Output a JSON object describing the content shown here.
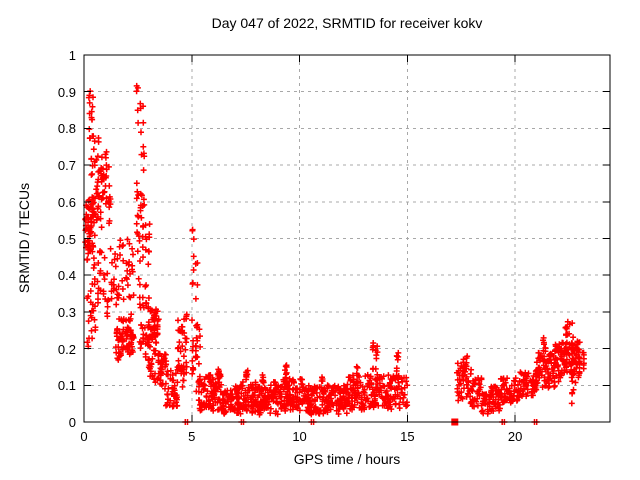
{
  "title": "Day 047 of 2022, SRMTID for receiver kokv",
  "axes": {
    "xlabel": "GPS time / hours",
    "ylabel": "SRMTID / TECUs"
  },
  "chart_data": {
    "type": "scatter",
    "title": "Day 047 of 2022, SRMTID for receiver kokv",
    "xlabel": "GPS time / hours",
    "ylabel": "SRMTID / TECUs",
    "xlim": [
      0,
      24.4
    ],
    "ylim": [
      0,
      1
    ],
    "grid": true,
    "legend": "none",
    "marker": "plus",
    "marker_color": "#ff0000",
    "grid_color": "#a8a8a8",
    "axis_color": "#000000",
    "x_ticks": {
      "values": [
        0,
        5,
        10,
        15,
        20
      ],
      "labels": [
        "0",
        "5",
        "10",
        "15",
        "20"
      ]
    },
    "y_ticks": {
      "values": [
        0,
        0.1,
        0.2,
        0.3,
        0.4,
        0.5,
        0.6,
        0.7,
        0.8,
        0.9,
        1
      ],
      "labels": [
        "0",
        "0.1",
        "0.2",
        "0.3",
        "0.4",
        "0.5",
        "0.6",
        "0.7",
        "0.8",
        "0.9",
        "1"
      ]
    },
    "band_format": [
      "x_start_hour",
      "x_end_hour",
      "srmtid_min",
      "srmtid_max",
      "point_count",
      "column_clusters"
    ],
    "point_bands": [
      [
        0.05,
        0.45,
        0.44,
        0.64,
        55,
        5
      ],
      [
        0.2,
        0.5,
        0.77,
        0.93,
        16,
        2
      ],
      [
        0.3,
        0.75,
        0.5,
        0.78,
        40,
        4
      ],
      [
        0.75,
        1.25,
        0.52,
        0.75,
        40,
        4
      ],
      [
        0.1,
        1.35,
        0.28,
        0.5,
        50,
        8
      ],
      [
        0.15,
        0.55,
        0.2,
        0.33,
        12,
        3
      ],
      [
        1.3,
        2.35,
        0.3,
        0.52,
        45,
        7
      ],
      [
        1.45,
        2.35,
        0.16,
        0.3,
        80,
        8
      ],
      [
        2.45,
        2.8,
        0.55,
        0.94,
        26,
        3
      ],
      [
        2.4,
        3.05,
        0.33,
        0.58,
        30,
        5
      ],
      [
        2.55,
        3.05,
        0.15,
        0.35,
        30,
        4
      ],
      [
        2.95,
        3.5,
        0.2,
        0.32,
        50,
        5
      ],
      [
        2.95,
        3.6,
        0.1,
        0.2,
        30,
        5
      ],
      [
        3.5,
        3.8,
        0.08,
        0.2,
        25,
        3
      ],
      [
        3.8,
        4.35,
        0.04,
        0.14,
        40,
        0
      ],
      [
        4.35,
        4.75,
        0.08,
        0.3,
        45,
        4
      ],
      [
        5.0,
        5.35,
        0.12,
        0.53,
        18,
        2
      ],
      [
        5.0,
        5.4,
        0.07,
        0.3,
        22,
        3
      ],
      [
        5.3,
        6.4,
        0.03,
        0.13,
        95,
        0
      ],
      [
        6.1,
        6.35,
        0.1,
        0.16,
        8,
        1
      ],
      [
        6.4,
        7.25,
        0.02,
        0.1,
        70,
        0
      ],
      [
        7.25,
        9.0,
        0.02,
        0.11,
        150,
        0
      ],
      [
        7.5,
        7.7,
        0.1,
        0.15,
        8,
        1
      ],
      [
        8.2,
        8.45,
        0.09,
        0.14,
        6,
        1
      ],
      [
        9.0,
        10.2,
        0.03,
        0.12,
        100,
        0
      ],
      [
        9.25,
        9.5,
        0.1,
        0.16,
        10,
        1
      ],
      [
        10.2,
        12.2,
        0.02,
        0.1,
        165,
        0
      ],
      [
        10.9,
        11.15,
        0.08,
        0.13,
        7,
        1
      ],
      [
        12.2,
        13.0,
        0.03,
        0.13,
        65,
        0
      ],
      [
        12.55,
        12.75,
        0.1,
        0.16,
        8,
        1
      ],
      [
        13.0,
        14.0,
        0.04,
        0.13,
        70,
        0
      ],
      [
        13.35,
        13.6,
        0.12,
        0.24,
        12,
        2
      ],
      [
        14.0,
        15.0,
        0.03,
        0.13,
        70,
        0
      ],
      [
        14.4,
        14.65,
        0.1,
        0.21,
        10,
        1
      ],
      [
        17.3,
        18.0,
        0.05,
        0.16,
        50,
        0
      ],
      [
        17.55,
        17.85,
        0.13,
        0.2,
        10,
        2
      ],
      [
        18.0,
        18.45,
        0.04,
        0.12,
        30,
        0
      ],
      [
        18.45,
        18.85,
        0.02,
        0.08,
        30,
        0
      ],
      [
        18.85,
        19.3,
        0.03,
        0.1,
        35,
        0
      ],
      [
        19.3,
        20.2,
        0.05,
        0.12,
        60,
        0
      ],
      [
        20.2,
        21.0,
        0.07,
        0.14,
        60,
        0
      ],
      [
        21.0,
        21.85,
        0.09,
        0.19,
        70,
        0
      ],
      [
        21.25,
        21.45,
        0.18,
        0.25,
        8,
        2
      ],
      [
        21.85,
        22.3,
        0.11,
        0.22,
        50,
        0
      ],
      [
        22.3,
        22.7,
        0.13,
        0.275,
        45,
        0
      ],
      [
        22.55,
        22.7,
        0.04,
        0.26,
        16,
        1
      ],
      [
        22.7,
        23.0,
        0.1,
        0.22,
        30,
        0
      ],
      [
        22.95,
        23.2,
        0.12,
        0.2,
        14,
        2
      ]
    ],
    "zero_line_markers_hours": [
      4.7,
      4.8,
      7.3,
      7.4,
      10.55,
      10.65,
      19.4,
      19.5,
      20.9,
      21.0
    ],
    "zero_line_block_hour": 17.2,
    "notable_peaks": [
      {
        "hour": 0.3,
        "srmtid": 0.92
      },
      {
        "hour": 2.6,
        "srmtid": 0.94
      },
      {
        "hour": 5.2,
        "srmtid": 0.53
      },
      {
        "hour": 13.5,
        "srmtid": 0.24
      },
      {
        "hour": 22.5,
        "srmtid": 0.27
      }
    ],
    "data_gap_hours": [
      15.0,
      17.1
    ]
  }
}
